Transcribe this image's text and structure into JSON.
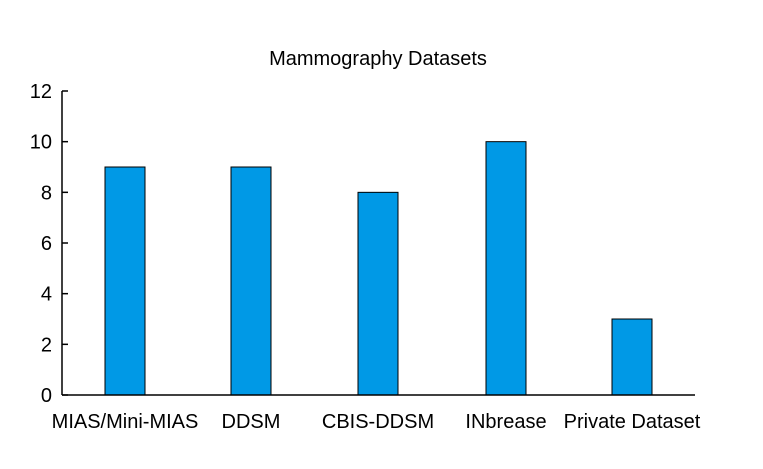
{
  "chart_data": {
    "type": "bar",
    "title": "Mammography Datasets",
    "xlabel": "",
    "ylabel": "",
    "categories": [
      "MIAS/Mini-MIAS",
      "DDSM",
      "CBIS-DDSM",
      "INbrease",
      "Private Dataset"
    ],
    "values": [
      9,
      9,
      8,
      10,
      3
    ],
    "ylim": [
      0,
      12
    ],
    "yticks": [
      "0",
      "2",
      "4",
      "6",
      "8",
      "10",
      "12"
    ],
    "grid": false,
    "legend": "none",
    "bar_color": "#0099e6",
    "bar_edge_color": "#000000"
  }
}
